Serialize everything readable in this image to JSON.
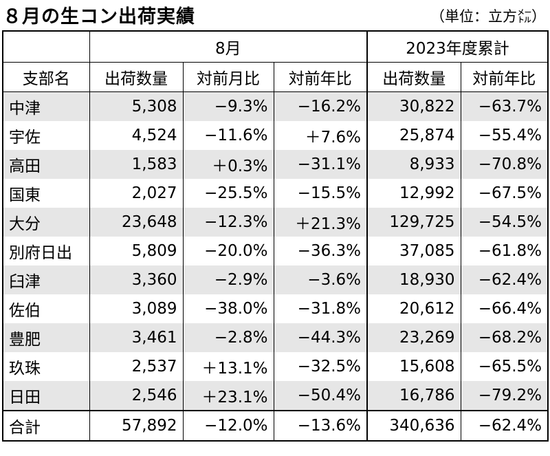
{
  "title": "８月の生コン出荷実績",
  "unit": "（単位：立方㍍）",
  "group_headers": [
    "8月",
    "2023年度累計"
  ],
  "columns": [
    "支部名",
    "出荷数量",
    "対前月比",
    "対前年比",
    "出荷数量",
    "対前年比"
  ],
  "rows": [
    [
      "中津",
      "5,308",
      "−9.3%",
      "−16.2%",
      "30,822",
      "−63.7%"
    ],
    [
      "宇佐",
      "4,524",
      "−11.6%",
      "＋7.6%",
      "25,874",
      "−55.4%"
    ],
    [
      "高田",
      "1,583",
      "＋0.3%",
      "−31.1%",
      "8,933",
      "−70.8%"
    ],
    [
      "国東",
      "2,027",
      "−25.5%",
      "−15.5%",
      "12,992",
      "−67.5%"
    ],
    [
      "大分",
      "23,648",
      "−12.3%",
      "＋21.3%",
      "129,725",
      "−54.5%"
    ],
    [
      "別府日出",
      "5,809",
      "−20.0%",
      "−36.3%",
      "37,085",
      "−61.8%"
    ],
    [
      "臼津",
      "3,360",
      "−2.9%",
      "−3.6%",
      "18,930",
      "−62.4%"
    ],
    [
      "佐伯",
      "3,089",
      "−38.0%",
      "−31.8%",
      "20,612",
      "−66.4%"
    ],
    [
      "豊肥",
      "3,461",
      "−2.8%",
      "−44.3%",
      "23,269",
      "−68.2%"
    ],
    [
      "玖珠",
      "2,537",
      "＋13.1%",
      "−32.5%",
      "15,608",
      "−65.5%"
    ],
    [
      "日田",
      "2,546",
      "＋23.1%",
      "−50.4%",
      "16,786",
      "−79.2%"
    ]
  ],
  "total": [
    "合計",
    "57,892",
    "−12.0%",
    "−13.6%",
    "340,636",
    "−62.4%"
  ],
  "row_shading": "#e6e6e6"
}
